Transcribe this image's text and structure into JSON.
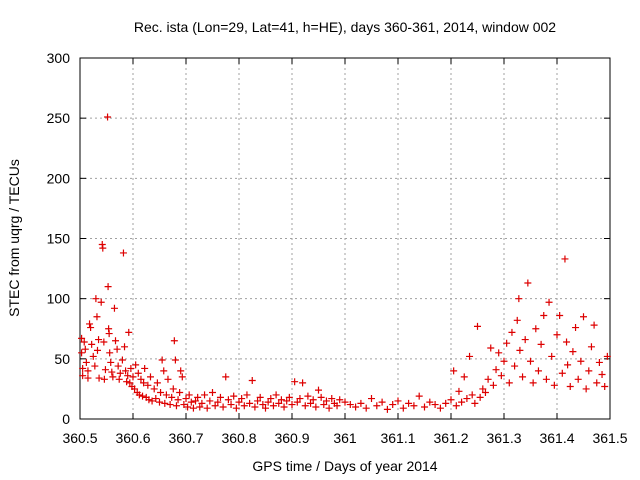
{
  "chart_data": {
    "type": "scatter",
    "title": "Rec. ista (Lon=29, Lat=41, h=HE), days 360-361, 2014, window 002",
    "xlabel": "GPS time / Days of year 2014",
    "ylabel": "STEC from uqrg / TECUs",
    "xlim": [
      360.5,
      361.5
    ],
    "ylim": [
      0,
      300
    ],
    "grid": true,
    "marker": "+",
    "colors": {
      "marker": "#dd0000",
      "grid": "#a0a0a0",
      "frame": "#000000"
    },
    "x_ticks": [
      "360.5",
      "360.6",
      "360.7",
      "360.8",
      "360.9",
      "361",
      "361.1",
      "361.2",
      "361.3",
      "361.4",
      "361.5"
    ],
    "y_ticks": [
      "0",
      "50",
      "100",
      "150",
      "200",
      "250",
      "300"
    ],
    "series": [
      {
        "points": [
          [
            360.503,
            67
          ],
          [
            360.503,
            55
          ],
          [
            360.505,
            42
          ],
          [
            360.505,
            36
          ],
          [
            360.508,
            64
          ],
          [
            360.51,
            58
          ],
          [
            360.512,
            47
          ],
          [
            360.515,
            40
          ],
          [
            360.515,
            34
          ],
          [
            360.518,
            79
          ],
          [
            360.52,
            76
          ],
          [
            360.522,
            62
          ],
          [
            360.525,
            52
          ],
          [
            360.528,
            44
          ],
          [
            360.53,
            100
          ],
          [
            360.532,
            85
          ],
          [
            360.533,
            57
          ],
          [
            360.535,
            66
          ],
          [
            360.536,
            34
          ],
          [
            360.54,
            97
          ],
          [
            360.542,
            145
          ],
          [
            360.543,
            142
          ],
          [
            360.545,
            64
          ],
          [
            360.546,
            33
          ],
          [
            360.548,
            41
          ],
          [
            360.552,
            251
          ],
          [
            360.553,
            110
          ],
          [
            360.554,
            75
          ],
          [
            360.555,
            71
          ],
          [
            360.556,
            55
          ],
          [
            360.558,
            47
          ],
          [
            360.56,
            39
          ],
          [
            360.562,
            35
          ],
          [
            360.565,
            92
          ],
          [
            360.567,
            65
          ],
          [
            360.57,
            58
          ],
          [
            360.572,
            44
          ],
          [
            360.574,
            33
          ],
          [
            360.576,
            38
          ],
          [
            360.58,
            49
          ],
          [
            360.582,
            138
          ],
          [
            360.584,
            60
          ],
          [
            360.586,
            40
          ],
          [
            360.588,
            31
          ],
          [
            360.59,
            36
          ],
          [
            360.592,
            72
          ],
          [
            360.594,
            30
          ],
          [
            360.596,
            42
          ],
          [
            360.598,
            27
          ],
          [
            360.6,
            35
          ],
          [
            360.603,
            25
          ],
          [
            360.605,
            45
          ],
          [
            360.608,
            22
          ],
          [
            360.61,
            38
          ],
          [
            360.612,
            20
          ],
          [
            360.615,
            33
          ],
          [
            360.618,
            19
          ],
          [
            360.62,
            30
          ],
          [
            360.622,
            42
          ],
          [
            360.625,
            18
          ],
          [
            360.628,
            28
          ],
          [
            360.63,
            16
          ],
          [
            360.633,
            35
          ],
          [
            360.636,
            15
          ],
          [
            360.64,
            25
          ],
          [
            360.643,
            17
          ],
          [
            360.646,
            30
          ],
          [
            360.65,
            14
          ],
          [
            360.652,
            22
          ],
          [
            360.655,
            49
          ],
          [
            360.658,
            40
          ],
          [
            360.66,
            13
          ],
          [
            360.663,
            20
          ],
          [
            360.666,
            33
          ],
          [
            360.67,
            12
          ],
          [
            360.673,
            18
          ],
          [
            360.676,
            25
          ],
          [
            360.678,
            65
          ],
          [
            360.68,
            49
          ],
          [
            360.682,
            11
          ],
          [
            360.685,
            16
          ],
          [
            360.688,
            22
          ],
          [
            360.69,
            40
          ],
          [
            360.693,
            35
          ],
          [
            360.696,
            12
          ],
          [
            360.7,
            17
          ],
          [
            360.703,
            10
          ],
          [
            360.706,
            20
          ],
          [
            360.71,
            14
          ],
          [
            360.714,
            9
          ],
          [
            360.718,
            15
          ],
          [
            360.722,
            18
          ],
          [
            360.726,
            10
          ],
          [
            360.73,
            13
          ],
          [
            360.735,
            20
          ],
          [
            360.74,
            9
          ],
          [
            360.745,
            15
          ],
          [
            360.75,
            22
          ],
          [
            360.755,
            11
          ],
          [
            360.76,
            14
          ],
          [
            360.765,
            18
          ],
          [
            360.77,
            10
          ],
          [
            360.775,
            35
          ],
          [
            360.78,
            16
          ],
          [
            360.785,
            12
          ],
          [
            360.79,
            19
          ],
          [
            360.795,
            9
          ],
          [
            360.8,
            14
          ],
          [
            360.805,
            17
          ],
          [
            360.81,
            11
          ],
          [
            360.815,
            20
          ],
          [
            360.82,
            13
          ],
          [
            360.825,
            32
          ],
          [
            360.83,
            10
          ],
          [
            360.835,
            15
          ],
          [
            360.84,
            18
          ],
          [
            360.845,
            12
          ],
          [
            360.85,
            9
          ],
          [
            360.855,
            14
          ],
          [
            360.86,
            17
          ],
          [
            360.865,
            11
          ],
          [
            360.87,
            20
          ],
          [
            360.875,
            13
          ],
          [
            360.88,
            16
          ],
          [
            360.885,
            10
          ],
          [
            360.89,
            15
          ],
          [
            360.895,
            18
          ],
          [
            360.9,
            12
          ],
          [
            360.905,
            31
          ],
          [
            360.91,
            14
          ],
          [
            360.915,
            17
          ],
          [
            360.92,
            30
          ],
          [
            360.925,
            11
          ],
          [
            360.93,
            19
          ],
          [
            360.935,
            13
          ],
          [
            360.94,
            16
          ],
          [
            360.945,
            10
          ],
          [
            360.95,
            24
          ],
          [
            360.955,
            18
          ],
          [
            360.96,
            12
          ],
          [
            360.965,
            15
          ],
          [
            360.97,
            9
          ],
          [
            360.975,
            17
          ],
          [
            360.98,
            13
          ],
          [
            360.985,
            11
          ],
          [
            360.99,
            16
          ],
          [
            361.0,
            14
          ],
          [
            361.01,
            12
          ],
          [
            361.02,
            10
          ],
          [
            361.03,
            13
          ],
          [
            361.04,
            9
          ],
          [
            361.05,
            17
          ],
          [
            361.06,
            11
          ],
          [
            361.07,
            14
          ],
          [
            361.08,
            8
          ],
          [
            361.09,
            12
          ],
          [
            361.1,
            15
          ],
          [
            361.11,
            9
          ],
          [
            361.12,
            13
          ],
          [
            361.13,
            11
          ],
          [
            361.14,
            19
          ],
          [
            361.15,
            10
          ],
          [
            361.16,
            14
          ],
          [
            361.17,
            12
          ],
          [
            361.18,
            9
          ],
          [
            361.19,
            13
          ],
          [
            361.2,
            16
          ],
          [
            361.205,
            40
          ],
          [
            361.21,
            11
          ],
          [
            361.215,
            23
          ],
          [
            361.22,
            14
          ],
          [
            361.225,
            35
          ],
          [
            361.23,
            17
          ],
          [
            361.235,
            52
          ],
          [
            361.24,
            20
          ],
          [
            361.245,
            13
          ],
          [
            361.25,
            77
          ],
          [
            361.255,
            18
          ],
          [
            361.26,
            25
          ],
          [
            361.265,
            22
          ],
          [
            361.27,
            33
          ],
          [
            361.275,
            59
          ],
          [
            361.28,
            28
          ],
          [
            361.285,
            41
          ],
          [
            361.29,
            55
          ],
          [
            361.295,
            36
          ],
          [
            361.3,
            48
          ],
          [
            361.305,
            63
          ],
          [
            361.31,
            30
          ],
          [
            361.315,
            72
          ],
          [
            361.32,
            44
          ],
          [
            361.325,
            82
          ],
          [
            361.328,
            100
          ],
          [
            361.33,
            57
          ],
          [
            361.335,
            35
          ],
          [
            361.34,
            66
          ],
          [
            361.345,
            113
          ],
          [
            361.35,
            48
          ],
          [
            361.355,
            30
          ],
          [
            361.36,
            75
          ],
          [
            361.365,
            40
          ],
          [
            361.37,
            62
          ],
          [
            361.375,
            86
          ],
          [
            361.38,
            33
          ],
          [
            361.385,
            97
          ],
          [
            361.39,
            52
          ],
          [
            361.395,
            28
          ],
          [
            361.4,
            70
          ],
          [
            361.405,
            86
          ],
          [
            361.41,
            38
          ],
          [
            361.415,
            133
          ],
          [
            361.418,
            64
          ],
          [
            361.42,
            45
          ],
          [
            361.425,
            27
          ],
          [
            361.43,
            56
          ],
          [
            361.435,
            76
          ],
          [
            361.44,
            33
          ],
          [
            361.445,
            48
          ],
          [
            361.45,
            85
          ],
          [
            361.455,
            25
          ],
          [
            361.46,
            40
          ],
          [
            361.465,
            60
          ],
          [
            361.47,
            78
          ],
          [
            361.475,
            30
          ],
          [
            361.48,
            47
          ],
          [
            361.485,
            37
          ],
          [
            361.49,
            27
          ],
          [
            361.495,
            52
          ]
        ]
      }
    ]
  }
}
